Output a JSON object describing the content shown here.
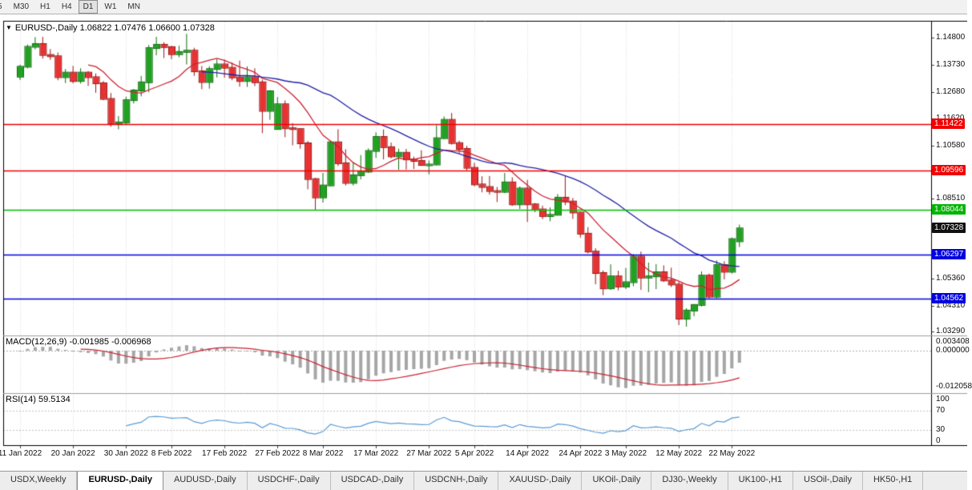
{
  "toolbar": {
    "timeframes": [
      "5",
      "M30",
      "H1",
      "H4",
      "D1",
      "W1",
      "MN"
    ],
    "active": "D1"
  },
  "chart": {
    "collapse_icon": "▼",
    "title_text": "EURUSD-,Daily 1.06822 1.07476 1.06600 1.07328",
    "macd_label": "MACD(12,26,9) -0.001985 -0.006968",
    "rsi_label": "RSI(14) 59.5134"
  },
  "chart_data": {
    "type": "candlestick",
    "symbol": "EURUSD-",
    "timeframe": "Daily",
    "ohlc_display": {
      "open": "1.06822",
      "high": "1.07476",
      "low": "1.06600",
      "close": "1.07328"
    },
    "candles": [
      [
        1.1327,
        1.1374,
        1.1314,
        1.1366
      ],
      [
        1.1366,
        1.1453,
        1.136,
        1.1444
      ],
      [
        1.1444,
        1.1482,
        1.1434,
        1.1455
      ],
      [
        1.1455,
        1.1483,
        1.1398,
        1.1412
      ],
      [
        1.1412,
        1.1435,
        1.1393,
        1.1407
      ],
      [
        1.1407,
        1.1422,
        1.1313,
        1.1325
      ],
      [
        1.1325,
        1.1357,
        1.1302,
        1.1343
      ],
      [
        1.1343,
        1.1369,
        1.1301,
        1.131
      ],
      [
        1.131,
        1.136,
        1.13,
        1.1343
      ],
      [
        1.1343,
        1.1349,
        1.1291,
        1.1325
      ],
      [
        1.1325,
        1.134,
        1.1264,
        1.1301
      ],
      [
        1.1301,
        1.131,
        1.1235,
        1.124
      ],
      [
        1.124,
        1.1263,
        1.1131,
        1.1145
      ],
      [
        1.1145,
        1.1173,
        1.1121,
        1.1148
      ],
      [
        1.1148,
        1.1248,
        1.1141,
        1.1235
      ],
      [
        1.1235,
        1.1279,
        1.1222,
        1.1273
      ],
      [
        1.1273,
        1.133,
        1.125,
        1.1305
      ],
      [
        1.1305,
        1.1451,
        1.1266,
        1.1439
      ],
      [
        1.1439,
        1.1483,
        1.1411,
        1.1452
      ],
      [
        1.1452,
        1.1462,
        1.14,
        1.1443
      ],
      [
        1.1443,
        1.1448,
        1.1396,
        1.1415
      ],
      [
        1.1415,
        1.1448,
        1.1403,
        1.1424
      ],
      [
        1.1424,
        1.1495,
        1.1375,
        1.1429
      ],
      [
        1.1429,
        1.144,
        1.133,
        1.1348
      ],
      [
        1.1348,
        1.1369,
        1.1278,
        1.1306
      ],
      [
        1.1306,
        1.1368,
        1.128,
        1.1357
      ],
      [
        1.1357,
        1.1395,
        1.1324,
        1.1375
      ],
      [
        1.1375,
        1.1394,
        1.1323,
        1.1362
      ],
      [
        1.1362,
        1.1383,
        1.1313,
        1.1324
      ],
      [
        1.1324,
        1.139,
        1.1288,
        1.131
      ],
      [
        1.131,
        1.1367,
        1.1287,
        1.1325
      ],
      [
        1.1325,
        1.136,
        1.129,
        1.1305
      ],
      [
        1.1305,
        1.1315,
        1.1106,
        1.1193
      ],
      [
        1.1193,
        1.1274,
        1.1158,
        1.127
      ],
      [
        1.1122,
        1.1247,
        1.1121,
        1.1219
      ],
      [
        1.1219,
        1.1234,
        1.109,
        1.1125
      ],
      [
        1.1125,
        1.1145,
        1.1058,
        1.1122
      ],
      [
        1.1122,
        1.1124,
        1.1045,
        1.1066
      ],
      [
        1.1066,
        1.1075,
        1.0886,
        1.0926
      ],
      [
        1.0926,
        1.0931,
        1.0806,
        1.0854
      ],
      [
        1.0854,
        1.095,
        1.0834,
        1.0901
      ],
      [
        1.0901,
        1.1077,
        1.0899,
        1.107
      ],
      [
        1.107,
        1.1121,
        1.0977,
        1.0988
      ],
      [
        1.0988,
        1.1043,
        1.0901,
        1.0911
      ],
      [
        1.0911,
        1.0993,
        1.0901,
        1.0941
      ],
      [
        1.0941,
        1.102,
        1.0925,
        1.0955
      ],
      [
        1.0955,
        1.1046,
        1.095,
        1.1036
      ],
      [
        1.1036,
        1.1109,
        1.1009,
        1.1091
      ],
      [
        1.1091,
        1.112,
        1.1003,
        1.1051
      ],
      [
        1.1051,
        1.1069,
        1.1007,
        1.1015
      ],
      [
        1.1015,
        1.1045,
        1.0962,
        1.1029
      ],
      [
        1.1029,
        1.1044,
        1.0963,
        1.1003
      ],
      [
        1.1003,
        1.1014,
        1.0965,
        1.0997
      ],
      [
        1.0997,
        1.1039,
        1.0979,
        1.0981
      ],
      [
        1.0981,
        1.0999,
        1.0944,
        1.0983
      ],
      [
        1.0983,
        1.1137,
        1.098,
        1.1086
      ],
      [
        1.1086,
        1.1171,
        1.1084,
        1.1158
      ],
      [
        1.1158,
        1.1185,
        1.1061,
        1.1067
      ],
      [
        1.1067,
        1.1076,
        1.1027,
        1.1044
      ],
      [
        1.1044,
        1.1056,
        1.096,
        1.097
      ],
      [
        1.097,
        1.099,
        1.0898,
        1.0905
      ],
      [
        1.0905,
        1.0937,
        1.0874,
        1.0895
      ],
      [
        1.0895,
        1.0938,
        1.0865,
        1.0879
      ],
      [
        1.0879,
        1.0895,
        1.0836,
        1.0876
      ],
      [
        1.0876,
        1.095,
        1.0871,
        1.0913
      ],
      [
        1.0913,
        1.0933,
        1.0821,
        1.0827
      ],
      [
        1.0827,
        1.0897,
        1.0809,
        1.0889
      ],
      [
        1.0889,
        1.0923,
        1.0758,
        1.0827
      ],
      [
        1.0827,
        1.0832,
        1.0796,
        1.0807
      ],
      [
        1.0807,
        1.0822,
        1.0769,
        1.0781
      ],
      [
        1.0781,
        1.0815,
        1.0761,
        1.0786
      ],
      [
        1.0786,
        1.0867,
        1.0783,
        1.0853
      ],
      [
        1.0853,
        1.0937,
        1.0824,
        1.0838
      ],
      [
        1.0838,
        1.0852,
        1.077,
        1.0795
      ],
      [
        1.0795,
        1.0797,
        1.0697,
        1.0712
      ],
      [
        1.0712,
        1.0738,
        1.0635,
        1.0642
      ],
      [
        1.0642,
        1.0655,
        1.0514,
        1.0558
      ],
      [
        1.0558,
        1.0568,
        1.0471,
        1.0498
      ],
      [
        1.0498,
        1.0592,
        1.0492,
        1.0545
      ],
      [
        1.0545,
        1.0567,
        1.049,
        1.0505
      ],
      [
        1.0505,
        1.0578,
        1.0495,
        1.0522
      ],
      [
        1.0522,
        1.0632,
        1.0506,
        1.0622
      ],
      [
        1.0622,
        1.0642,
        1.0492,
        1.054
      ],
      [
        1.054,
        1.0599,
        1.0483,
        1.0545
      ],
      [
        1.0545,
        1.0593,
        1.0495,
        1.0561
      ],
      [
        1.0561,
        1.0588,
        1.0523,
        1.0529
      ],
      [
        1.0529,
        1.0579,
        1.0503,
        1.0513
      ],
      [
        1.0513,
        1.0525,
        1.0354,
        1.0379
      ],
      [
        1.0379,
        1.042,
        1.0348,
        1.0411
      ],
      [
        1.0411,
        1.0436,
        1.0389,
        1.0433
      ],
      [
        1.0433,
        1.0564,
        1.0427,
        1.0548
      ],
      [
        1.0548,
        1.0556,
        1.0459,
        1.0465
      ],
      [
        1.0465,
        1.0607,
        1.0459,
        1.0589
      ],
      [
        1.0589,
        1.0604,
        1.0533,
        1.0563
      ],
      [
        1.0563,
        1.0697,
        1.0556,
        1.0691
      ],
      [
        1.06822,
        1.07476,
        1.066,
        1.07328
      ]
    ],
    "x_tick_labels": [
      "11 Jan 2022",
      "20 Jan 2022",
      "30 Jan 2022",
      "8 Feb 2022",
      "17 Feb 2022",
      "27 Feb 2022",
      "8 Mar 2022",
      "17 Mar 2022",
      "27 Mar 2022",
      "5 Apr 2022",
      "14 Apr 2022",
      "24 Apr 2022",
      "3 May 2022",
      "12 May 2022",
      "22 May 2022"
    ],
    "x_tick_indices": [
      0,
      7,
      14,
      20,
      27,
      34,
      40,
      47,
      54,
      60,
      67,
      74,
      80,
      87,
      94
    ],
    "y_axis_labels": [
      {
        "text": "1.14800",
        "price": 1.148
      },
      {
        "text": "1.13730",
        "price": 1.1373
      },
      {
        "text": "1.12680",
        "price": 1.1268
      },
      {
        "text": "1.11620",
        "price": 1.1162
      },
      {
        "text": "1.10580",
        "price": 1.1058
      },
      {
        "text": "1.08510",
        "price": 1.0851
      },
      {
        "text": "1.05360",
        "price": 1.0536
      },
      {
        "text": "1.04310",
        "price": 1.0431
      },
      {
        "text": "1.03290",
        "price": 1.0329
      }
    ],
    "hlines": [
      {
        "price": 1.11422,
        "color": "#f00000"
      },
      {
        "price": 1.09596,
        "color": "#f00000"
      },
      {
        "price": 1.08044,
        "color": "#00c000"
      },
      {
        "price": 1.06297,
        "color": "#0000e0"
      },
      {
        "price": 1.04562,
        "color": "#0000e0"
      }
    ],
    "price_badges": [
      {
        "text": "1.11422",
        "price": 1.11422,
        "color": "#f00000",
        "kind": "hline"
      },
      {
        "text": "1.09596",
        "price": 1.09596,
        "color": "#f00000",
        "kind": "hline"
      },
      {
        "text": "1.08044",
        "price": 1.08044,
        "color": "#00b400",
        "kind": "hline"
      },
      {
        "text": "1.07328",
        "price": 1.07328,
        "color": "#111111",
        "kind": "current-price"
      },
      {
        "text": "1.06297",
        "price": 1.06297,
        "color": "#0000e0",
        "kind": "hline"
      },
      {
        "text": "1.04562",
        "price": 1.04562,
        "color": "#0000e0",
        "kind": "hline"
      }
    ],
    "moving_averages": [
      {
        "name": "ma-fast",
        "period": 10,
        "color": "#cc2233"
      },
      {
        "name": "ma-slow",
        "period": 25,
        "color": "#2121a8"
      }
    ],
    "macd": {
      "params": "12,26,9",
      "value": "-0.001985",
      "signal_value": "-0.006968",
      "axis_labels": [
        {
          "text": "0.003408",
          "value": 0.003408
        },
        {
          "text": "0.000000",
          "value": 0
        },
        {
          "text": "-0.012058",
          "value": -0.012058
        }
      ]
    },
    "rsi": {
      "period": 14,
      "value": "59.5134",
      "levels": [
        70,
        30
      ],
      "color": "#5b9bd5",
      "axis_labels": [
        {
          "text": "100",
          "value": 100
        },
        {
          "text": "70",
          "value": 70
        },
        {
          "text": "30",
          "value": 30
        },
        {
          "text": "0",
          "value": 0
        }
      ]
    },
    "colors": {
      "up": "#21a121",
      "up_border": "#0f6d0f",
      "down": "#e83232",
      "down_border": "#9c1414",
      "hist": "#a6a6a6",
      "signal": "#cc2233",
      "grid": "#d9d9d9",
      "frame": "#000000",
      "separator": "#9e9e9e"
    }
  },
  "tabs": {
    "items": [
      "USDX,Weekly",
      "EURUSD-,Daily",
      "AUDUSD-,Daily",
      "USDCHF-,Daily",
      "USDCAD-,Daily",
      "USDCNH-,Daily",
      "XAUUSD-,Daily",
      "UKOil-,Daily",
      "DJ30-,Weekly",
      "UK100-,H1",
      "USOil-,Daily",
      "HK50-,H1"
    ],
    "active_index": 1
  }
}
